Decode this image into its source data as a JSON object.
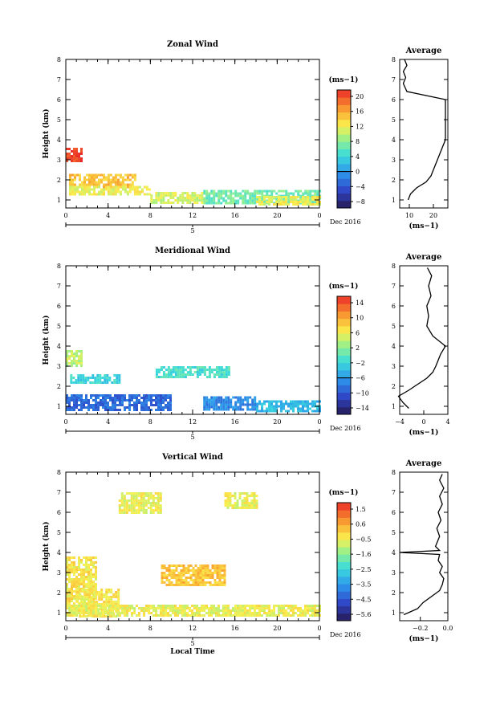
{
  "chart_data": [
    {
      "type": "heatmap",
      "title": "Zonal Wind",
      "xlabel": "",
      "ylabel": "Height (km)",
      "x_ticks": [
        "0",
        "4",
        "8",
        "12",
        "16",
        "20",
        "0"
      ],
      "y_ticks": [
        "1",
        "2",
        "3",
        "4",
        "5",
        "6",
        "7",
        "8"
      ],
      "xlim": [
        0,
        24
      ],
      "ylim": [
        0.6,
        8
      ],
      "date_marker": "5",
      "date_label": "Dec 2016",
      "colorbar": {
        "unit": "(ms−1)",
        "ticks": [
          "20",
          "16",
          "12",
          "8",
          "4",
          "0",
          "−4",
          "−8"
        ],
        "range": [
          -10,
          22
        ]
      },
      "fill_regions": [
        {
          "x": [
            0,
            1.4
          ],
          "y": [
            2.9,
            3.6
          ],
          "value": 21
        },
        {
          "x": [
            0.3,
            6.5
          ],
          "y": [
            1.6,
            2.3
          ],
          "value": 15
        },
        {
          "x": [
            0.3,
            8.0
          ],
          "y": [
            1.3,
            1.7
          ],
          "value": 12
        },
        {
          "x": [
            8.0,
            13.0
          ],
          "y": [
            0.8,
            1.4
          ],
          "value": 11
        },
        {
          "x": [
            13.0,
            24.0
          ],
          "y": [
            0.8,
            1.5
          ],
          "value": 7
        },
        {
          "x": [
            18.0,
            24.0
          ],
          "y": [
            0.8,
            1.2
          ],
          "value": 12
        }
      ],
      "profile": {
        "title": "Average",
        "xlabel": "(ms−1)",
        "x_ticks": [
          "10",
          "20"
        ],
        "xlim": [
          6,
          26
        ],
        "heights": [
          1.0,
          1.3,
          1.6,
          1.9,
          2.2,
          2.5,
          2.8,
          3.1,
          3.4,
          3.7,
          4.0,
          4.3,
          5.0,
          6.0,
          6.4,
          6.8,
          7.1,
          7.4,
          7.7,
          8.0
        ],
        "values": [
          9.5,
          10.5,
          13,
          17,
          19,
          20,
          21,
          22,
          23,
          24,
          25,
          25,
          25,
          25,
          9,
          7.5,
          8.5,
          7.5,
          9,
          8
        ]
      }
    },
    {
      "type": "heatmap",
      "title": "Meridional Wind",
      "xlabel": "",
      "ylabel": "Height (km)",
      "x_ticks": [
        "0",
        "4",
        "8",
        "12",
        "16",
        "20",
        "0"
      ],
      "y_ticks": [
        "1",
        "2",
        "3",
        "4",
        "5",
        "6",
        "7",
        "8"
      ],
      "xlim": [
        0,
        24
      ],
      "ylim": [
        0.6,
        8
      ],
      "date_marker": "5",
      "date_label": "Dec 2016",
      "colorbar": {
        "unit": "(ms−1)",
        "ticks": [
          "14",
          "10",
          "6",
          "2",
          "−2",
          "−6",
          "−10",
          "−14"
        ],
        "range": [
          -16,
          16
        ]
      },
      "fill_regions": [
        {
          "x": [
            0,
            1.4
          ],
          "y": [
            3.0,
            3.8
          ],
          "value": 4
        },
        {
          "x": [
            0.4,
            5.0
          ],
          "y": [
            2.2,
            2.6
          ],
          "value": -2
        },
        {
          "x": [
            8.5,
            15.5
          ],
          "y": [
            2.4,
            3.0
          ],
          "value": -1
        },
        {
          "x": [
            0,
            10.0
          ],
          "y": [
            0.8,
            1.6
          ],
          "value": -9
        },
        {
          "x": [
            13.0,
            18.0
          ],
          "y": [
            0.8,
            1.5
          ],
          "value": -7
        },
        {
          "x": [
            18.0,
            24.0
          ],
          "y": [
            0.8,
            1.3
          ],
          "value": -4
        }
      ],
      "profile": {
        "title": "Average",
        "xlabel": "(ms−1)",
        "x_ticks": [
          "−4",
          "0",
          "4"
        ],
        "xlim": [
          -4,
          4
        ],
        "heights": [
          0.9,
          1.2,
          1.5,
          1.8,
          2.1,
          2.4,
          2.7,
          3.0,
          3.3,
          3.6,
          4.0,
          4.5,
          5.0,
          5.5,
          6.0,
          6.5,
          7.0,
          7.5,
          7.9
        ],
        "values": [
          -2.5,
          -3.5,
          -4.2,
          -2.5,
          -1.0,
          0.5,
          1.5,
          2.0,
          2.4,
          2.8,
          3.6,
          1.5,
          0.5,
          0.8,
          0.5,
          1.2,
          0.8,
          1.3,
          0.6
        ]
      }
    },
    {
      "type": "heatmap",
      "title": "Vertical Wind",
      "xlabel": "Local Time",
      "ylabel": "Height (km)",
      "x_ticks": [
        "0",
        "4",
        "8",
        "12",
        "16",
        "20",
        "0"
      ],
      "y_ticks": [
        "1",
        "2",
        "3",
        "4",
        "5",
        "6",
        "7",
        "8"
      ],
      "xlim": [
        0,
        24
      ],
      "ylim": [
        0.6,
        8
      ],
      "date_marker": "5",
      "date_label": "Dec 2016",
      "colorbar": {
        "unit": "(ms−1)",
        "ticks": [
          "1.5",
          "0.6",
          "−0.5",
          "−1.6",
          "−2.5",
          "−3.5",
          "−4.5",
          "−5.6"
        ],
        "range": [
          -6,
          2
        ]
      },
      "fill_regions": [
        {
          "x": [
            0,
            2.8
          ],
          "y": [
            1.0,
            3.8
          ],
          "value": -0.3
        },
        {
          "x": [
            1.0,
            5.0
          ],
          "y": [
            0.8,
            2.2
          ],
          "value": -0.3
        },
        {
          "x": [
            9.0,
            15.0
          ],
          "y": [
            2.4,
            3.4
          ],
          "value": 0.2
        },
        {
          "x": [
            0,
            24.0
          ],
          "y": [
            0.8,
            1.4
          ],
          "value": -0.5
        },
        {
          "x": [
            5.0,
            9.0
          ],
          "y": [
            6.0,
            7.0
          ],
          "value": -0.5
        },
        {
          "x": [
            15.0,
            18.0
          ],
          "y": [
            6.2,
            7.0
          ],
          "value": -0.5
        }
      ],
      "profile": {
        "title": "Average",
        "xlabel": "(ms−1)",
        "x_ticks": [
          "−0.2",
          "0.0"
        ],
        "xlim": [
          -0.35,
          0.0
        ],
        "heights": [
          0.9,
          1.2,
          1.5,
          1.8,
          2.1,
          2.4,
          2.7,
          3.0,
          3.3,
          3.6,
          3.9,
          4.0,
          4.1,
          4.3,
          4.8,
          5.2,
          5.6,
          6.0,
          6.4,
          6.8,
          7.2,
          7.6,
          7.9
        ],
        "values": [
          -0.32,
          -0.22,
          -0.18,
          -0.12,
          -0.06,
          -0.04,
          -0.03,
          -0.06,
          -0.04,
          -0.07,
          -0.06,
          -0.35,
          -0.06,
          -0.09,
          -0.06,
          -0.08,
          -0.05,
          -0.07,
          -0.04,
          -0.06,
          -0.03,
          -0.06,
          -0.04
        ]
      }
    }
  ]
}
